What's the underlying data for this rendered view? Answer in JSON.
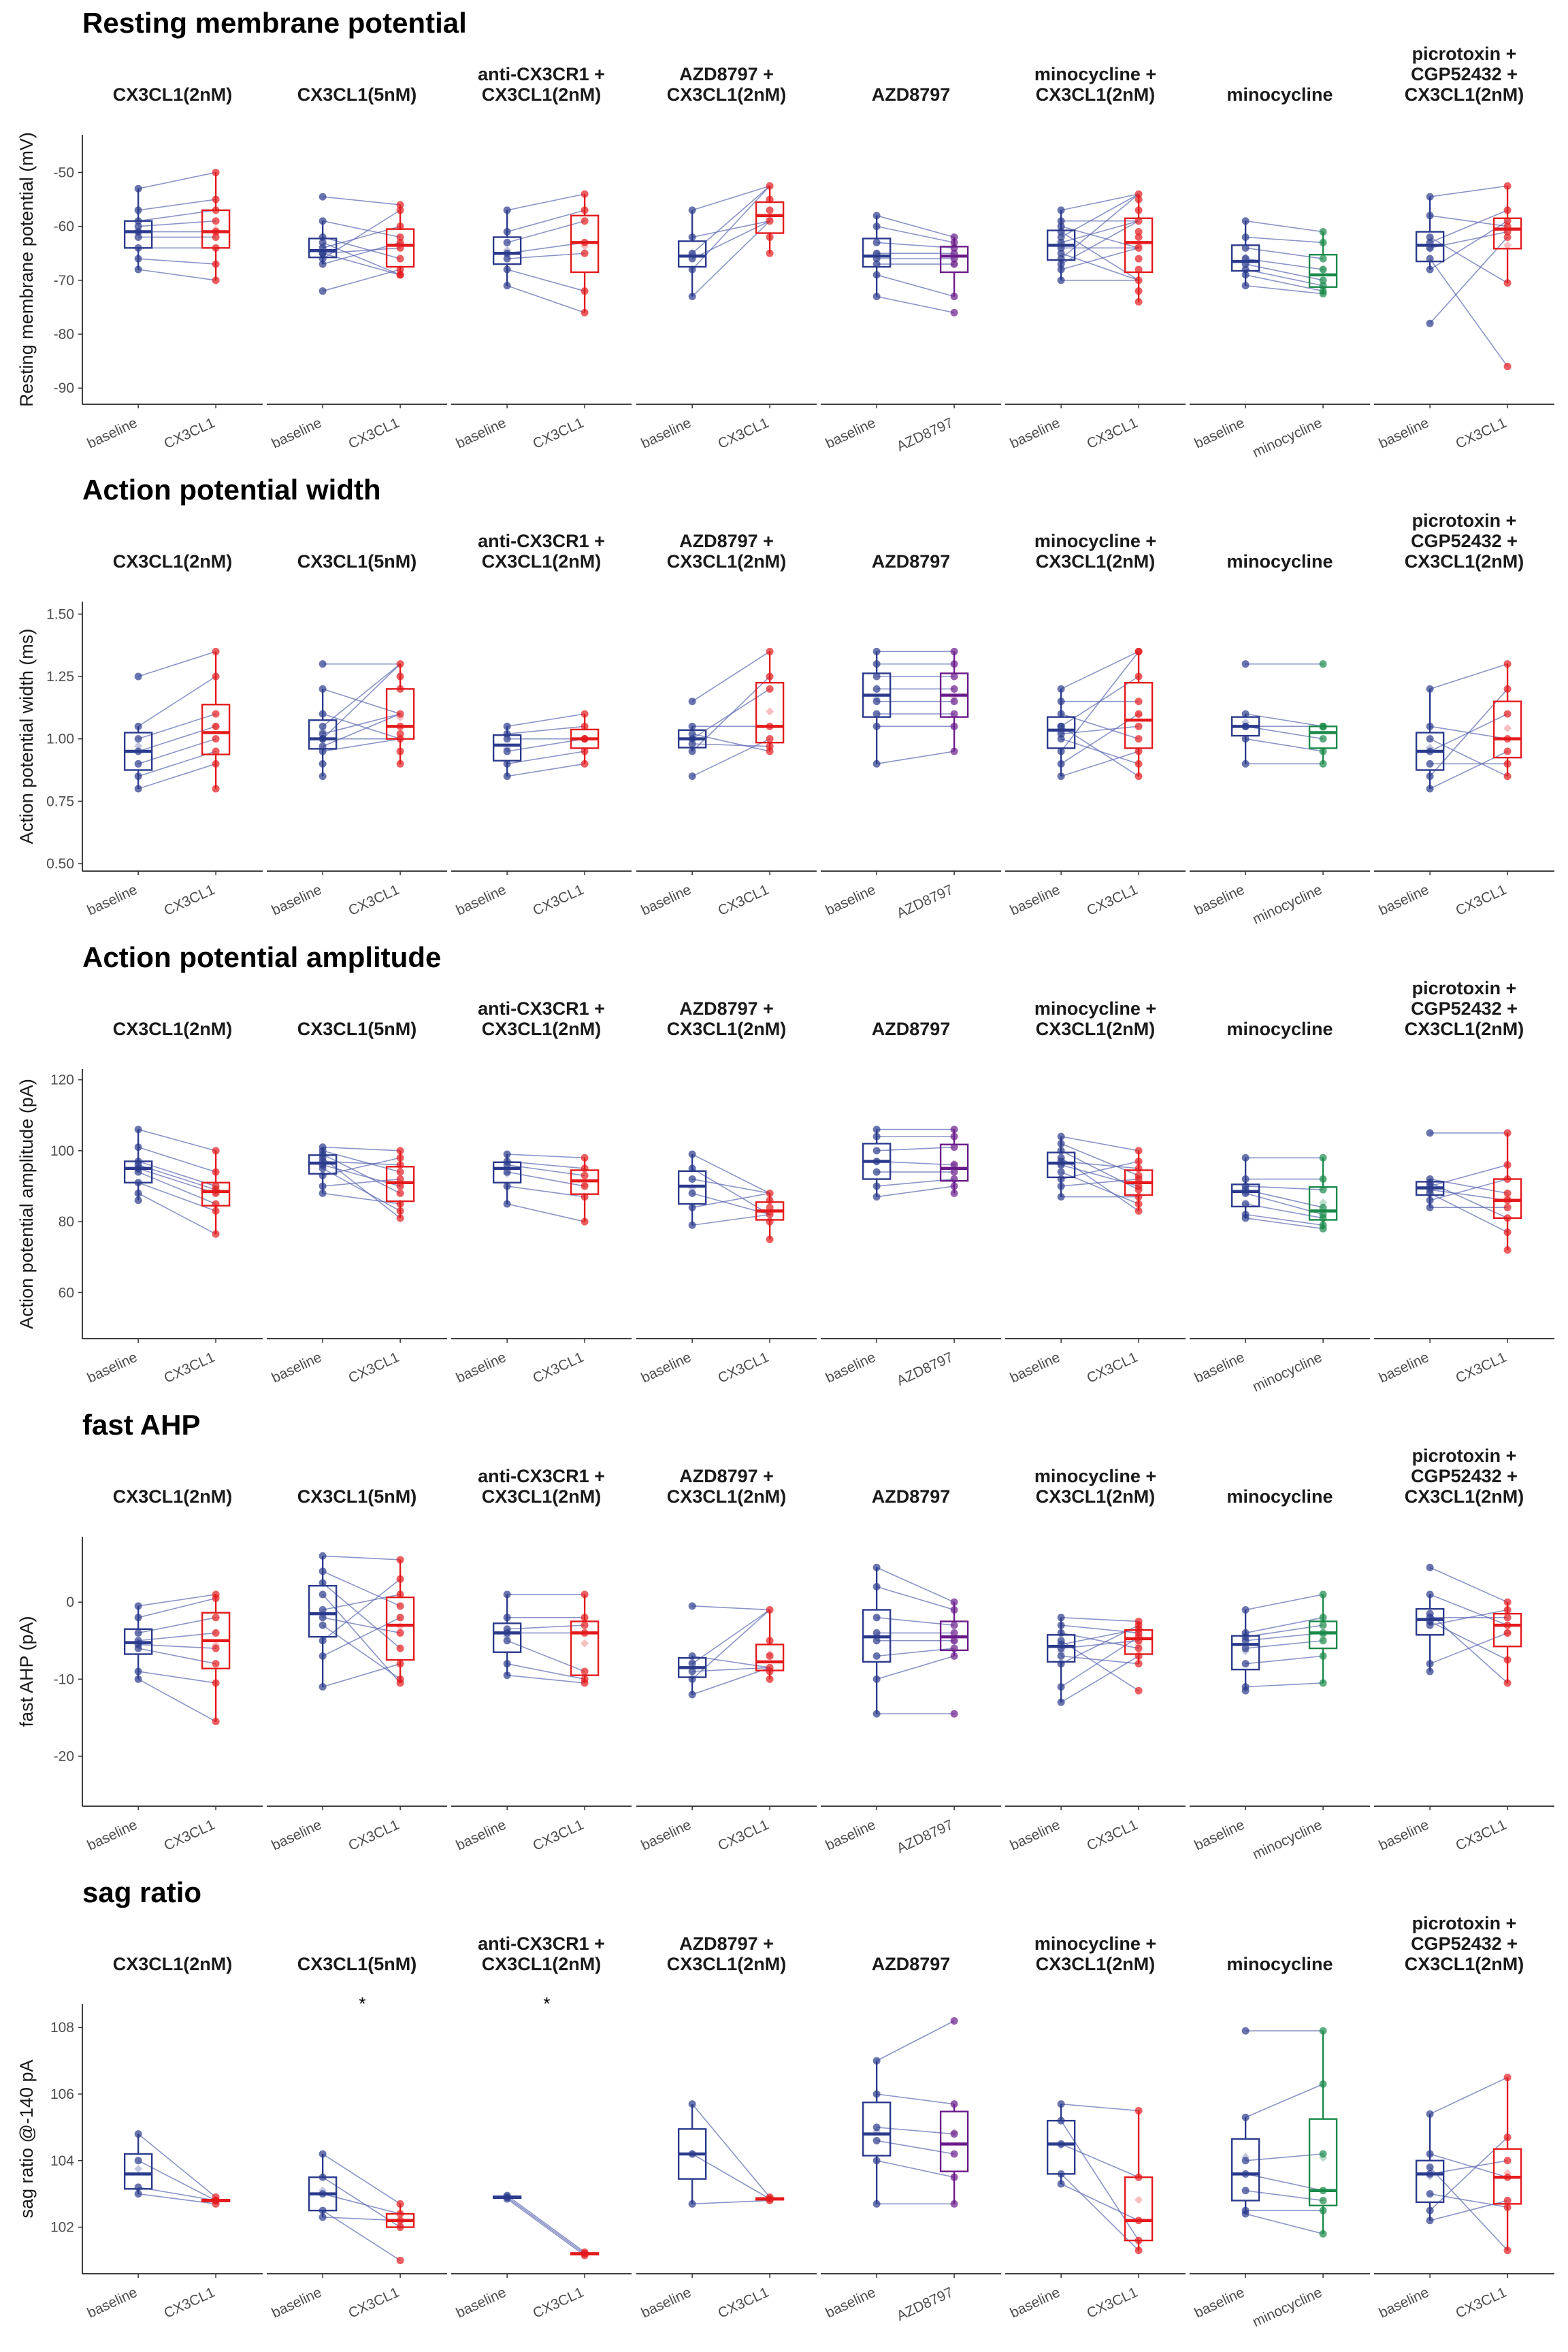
{
  "colors": {
    "baseline": "#2b3a8c",
    "CX3CL1": "#e41a1c",
    "AZD8797": "#6a1b8a",
    "minocycline": "#1a8a4a",
    "connector": "#5a67b0"
  },
  "facet_titles": [
    [
      "CX3CL1(2nM)"
    ],
    [
      "CX3CL1(5nM)"
    ],
    [
      "anti-CX3CR1 +",
      "CX3CL1(2nM)"
    ],
    [
      "AZD8797 +",
      "CX3CL1(2nM)"
    ],
    [
      "AZD8797"
    ],
    [
      "minocycline +",
      "CX3CL1(2nM)"
    ],
    [
      "minocycline"
    ],
    [
      "picrotoxin +",
      "CGP52432 +",
      "CX3CL1(2nM)"
    ]
  ],
  "x_labels": [
    [
      "baseline",
      "CX3CL1"
    ],
    [
      "baseline",
      "CX3CL1"
    ],
    [
      "baseline",
      "CX3CL1"
    ],
    [
      "baseline",
      "CX3CL1"
    ],
    [
      "baseline",
      "AZD8797"
    ],
    [
      "baseline",
      "CX3CL1"
    ],
    [
      "baseline",
      "minocycline"
    ],
    [
      "baseline",
      "CX3CL1"
    ]
  ],
  "chart_data": [
    {
      "type": "box",
      "title": "Resting membrane potential",
      "ylabel": "Resting membrane potential (mV)",
      "ylim": [
        -93,
        -43
      ],
      "yticks": [
        -90,
        -80,
        -70,
        -60,
        -50
      ],
      "facets": [
        {
          "baseline": [
            -53,
            -57,
            -59,
            -60,
            -61,
            -62,
            -64,
            -66,
            -68
          ],
          "treated": [
            -50,
            -55,
            -57,
            -59,
            -61,
            -62,
            -64,
            -67,
            -70
          ],
          "sig": ""
        },
        {
          "baseline": [
            -54.5,
            -59,
            -62,
            -63,
            -64,
            -65,
            -65,
            -66,
            -67,
            -72
          ],
          "treated": [
            -56,
            -57,
            -60,
            -62,
            -63,
            -64,
            -66,
            -68,
            -69,
            -69
          ],
          "sig": ""
        },
        {
          "baseline": [
            -57,
            -61,
            -63,
            -65,
            -66,
            -68,
            -71
          ],
          "treated": [
            -54,
            -57,
            -59,
            -63,
            -65,
            -72,
            -76
          ],
          "sig": ""
        },
        {
          "baseline": [
            -57,
            -62,
            -65,
            -66,
            -68,
            -73
          ],
          "treated": [
            -52.5,
            -55,
            -57,
            -59,
            -62,
            -65
          ],
          "sig": ""
        },
        {
          "baseline": [
            -58,
            -60,
            -63,
            -65,
            -66,
            -67,
            -69,
            -73
          ],
          "treated": [
            -62,
            -63,
            -64,
            -65,
            -66,
            -67,
            -73,
            -76
          ],
          "sig": ""
        },
        {
          "baseline": [
            -57,
            -59,
            -60,
            -61,
            -62,
            -63,
            -64,
            -65,
            -66,
            -67,
            -68,
            -70
          ],
          "treated": [
            -54,
            -55,
            -57,
            -59,
            -61,
            -62,
            -64,
            -66,
            -68,
            -70,
            -72,
            -74
          ],
          "sig": ""
        },
        {
          "baseline": [
            -59,
            -62,
            -64,
            -66,
            -67,
            -68,
            -69,
            -71
          ],
          "treated": [
            -61,
            -63,
            -66,
            -68,
            -70,
            -71,
            -72,
            -72.5
          ],
          "sig": ""
        },
        {
          "baseline": [
            -54.5,
            -58,
            -62,
            -63,
            -64,
            -66,
            -68,
            -78
          ],
          "treated": [
            -52.5,
            -57,
            -59,
            -60,
            -61,
            -62,
            -70.5,
            -86
          ],
          "sig": ""
        }
      ]
    },
    {
      "type": "box",
      "title": "Action potential width",
      "ylabel": "Action potential width (ms)",
      "ylim": [
        0.47,
        1.55
      ],
      "yticks": [
        0.5,
        0.75,
        1.0,
        1.25,
        1.5
      ],
      "ytick_labels": [
        "0.50",
        "0.75",
        "1.00",
        "1.25",
        "1.50"
      ],
      "facets": [
        {
          "baseline": [
            0.8,
            0.85,
            0.9,
            0.95,
            1.0,
            1.05,
            1.25
          ],
          "treated": [
            0.8,
            0.9,
            0.95,
            1.0,
            1.05,
            1.1,
            1.25,
            1.35
          ],
          "sig": ""
        },
        {
          "baseline": [
            0.85,
            0.9,
            0.95,
            0.97,
            1.0,
            1.0,
            1.02,
            1.05,
            1.1,
            1.2,
            1.3
          ],
          "treated": [
            0.9,
            0.95,
            1.0,
            1.02,
            1.05,
            1.1,
            1.2,
            1.25,
            1.3
          ],
          "sig": ""
        },
        {
          "baseline": [
            0.85,
            0.9,
            0.95,
            1.0,
            1.02,
            1.05
          ],
          "treated": [
            0.9,
            0.95,
            1.0,
            1.0,
            1.05,
            1.1
          ],
          "sig": ""
        },
        {
          "baseline": [
            0.85,
            0.95,
            0.98,
            1.0,
            1.02,
            1.05,
            1.15
          ],
          "treated": [
            0.95,
            0.97,
            1.0,
            1.05,
            1.2,
            1.25,
            1.35
          ],
          "sig": ""
        },
        {
          "baseline": [
            0.9,
            1.05,
            1.1,
            1.15,
            1.2,
            1.25,
            1.3,
            1.35
          ],
          "treated": [
            0.95,
            1.05,
            1.1,
            1.15,
            1.2,
            1.25,
            1.3,
            1.35
          ],
          "sig": ""
        },
        {
          "baseline": [
            0.85,
            0.9,
            0.95,
            1.0,
            1.02,
            1.05,
            1.05,
            1.1,
            1.15,
            1.2
          ],
          "treated": [
            0.85,
            0.9,
            0.95,
            1.0,
            1.05,
            1.1,
            1.15,
            1.25,
            1.35,
            1.35
          ],
          "sig": ""
        },
        {
          "baseline": [
            0.9,
            1.0,
            1.05,
            1.05,
            1.1,
            1.3
          ],
          "treated": [
            0.9,
            0.95,
            1.0,
            1.05,
            1.05,
            1.3
          ],
          "sig": ""
        },
        {
          "baseline": [
            0.8,
            0.85,
            0.9,
            0.95,
            1.0,
            1.05,
            1.2
          ],
          "treated": [
            0.85,
            0.9,
            0.95,
            1.0,
            1.1,
            1.2,
            1.3
          ],
          "sig": ""
        }
      ]
    },
    {
      "type": "box",
      "title": "Action potential amplitude",
      "ylabel": "Action potential amplitude (pA)",
      "ylim": [
        47,
        123
      ],
      "yticks": [
        60,
        80,
        100,
        120
      ],
      "facets": [
        {
          "baseline": [
            86,
            88,
            91,
            94,
            95,
            96,
            97,
            101,
            106
          ],
          "treated": [
            76.5,
            83,
            85,
            88,
            89,
            90,
            94,
            100
          ],
          "sig": ""
        },
        {
          "baseline": [
            88,
            90,
            93,
            95,
            96,
            97,
            98,
            99,
            100,
            101
          ],
          "treated": [
            81,
            83,
            85,
            88,
            90,
            92,
            94,
            96,
            98,
            100
          ],
          "sig": ""
        },
        {
          "baseline": [
            85,
            90,
            94,
            96,
            97,
            99
          ],
          "treated": [
            80,
            87,
            90,
            93,
            95,
            98
          ],
          "sig": ""
        },
        {
          "baseline": [
            79,
            84,
            88,
            92,
            95,
            99
          ],
          "treated": [
            75,
            80,
            82,
            84,
            86,
            88
          ],
          "sig": ""
        },
        {
          "baseline": [
            87,
            90,
            94,
            97,
            100,
            104,
            106
          ],
          "treated": [
            88,
            90,
            92,
            94,
            96,
            101,
            104,
            106
          ],
          "sig": ""
        },
        {
          "baseline": [
            87,
            90,
            92,
            94,
            96,
            97,
            98,
            100,
            102,
            104
          ],
          "treated": [
            83,
            85,
            87,
            89,
            90,
            92,
            93,
            95,
            97,
            100
          ],
          "sig": ""
        },
        {
          "baseline": [
            81,
            82,
            85,
            88,
            89,
            90,
            92,
            98
          ],
          "treated": [
            78,
            79,
            81,
            82,
            84,
            89,
            92,
            98
          ],
          "sig": ""
        },
        {
          "baseline": [
            84,
            86,
            88,
            89,
            90,
            91,
            92,
            105
          ],
          "treated": [
            72,
            77,
            81,
            84,
            86,
            88,
            92,
            96,
            105
          ],
          "sig": ""
        }
      ]
    },
    {
      "type": "box",
      "title": "fast AHP",
      "ylabel": "fast AHP (pA)",
      "ylim": [
        -26.5,
        8.5
      ],
      "yticks": [
        -20,
        -10,
        0
      ],
      "facets": [
        {
          "baseline": [
            -0.5,
            -2,
            -4,
            -5,
            -5.5,
            -6,
            -9,
            -10
          ],
          "treated": [
            1,
            0.5,
            -2,
            -4,
            -6,
            -8,
            -10.5,
            -15.5
          ],
          "sig": ""
        },
        {
          "baseline": [
            6,
            4,
            2.5,
            1,
            -1,
            -2,
            -3,
            -5,
            -7,
            -11
          ],
          "treated": [
            5.5,
            3,
            1,
            -0.5,
            -2,
            -4,
            -6,
            -8,
            -10,
            -10.5
          ],
          "sig": ""
        },
        {
          "baseline": [
            1,
            -2,
            -3.5,
            -4,
            -5,
            -8,
            -9.5
          ],
          "treated": [
            1,
            -2,
            -3,
            -4,
            -9,
            -10,
            -10.5
          ],
          "sig": ""
        },
        {
          "baseline": [
            -0.5,
            -7,
            -8,
            -9,
            -10,
            -12
          ],
          "treated": [
            -1,
            -5,
            -7,
            -8.5,
            -9,
            -10
          ],
          "sig": ""
        },
        {
          "baseline": [
            4.5,
            2,
            -2,
            -4,
            -5,
            -7,
            -10,
            -14.5
          ],
          "treated": [
            0,
            -1,
            -3,
            -4,
            -5,
            -6,
            -7,
            -14.5
          ],
          "sig": ""
        },
        {
          "baseline": [
            -2,
            -3,
            -4,
            -5,
            -5.5,
            -6,
            -7,
            -8,
            -11,
            -13
          ],
          "treated": [
            -2.5,
            -3,
            -3.5,
            -4,
            -4.5,
            -5,
            -6,
            -7,
            -8,
            -11.5
          ],
          "sig": ""
        },
        {
          "baseline": [
            -1,
            -4,
            -4.5,
            -5,
            -6,
            -8,
            -11,
            -11.5
          ],
          "treated": [
            1,
            -2,
            -3,
            -4,
            -5,
            -7,
            -10.5
          ],
          "sig": ""
        },
        {
          "baseline": [
            4.5,
            1,
            -1.5,
            -2,
            -2.5,
            -3,
            -8,
            -9
          ],
          "treated": [
            0,
            -1,
            -2,
            -3,
            -4,
            -7.5,
            -10.5
          ],
          "sig": ""
        }
      ]
    },
    {
      "type": "box",
      "title": "sag ratio",
      "ylabel": "sag ratio @-140 pA",
      "ylim": [
        100.6,
        108.7
      ],
      "yticks": [
        102,
        104,
        106,
        108
      ],
      "facets": [
        {
          "baseline": [
            104.8,
            104,
            103.2,
            103
          ],
          "treated": [
            102.9,
            102.8,
            102.8,
            102.7
          ],
          "sig": ""
        },
        {
          "baseline": [
            104.2,
            103.5,
            103,
            102.5,
            102.3
          ],
          "treated": [
            102.7,
            102.4,
            102.2,
            102.0,
            101.0
          ],
          "sig": "*"
        },
        {
          "baseline": [
            102.95,
            102.9,
            102.85
          ],
          "treated": [
            101.25,
            101.2,
            101.15
          ],
          "sig": "*"
        },
        {
          "baseline": [
            105.7,
            104.2,
            102.7
          ],
          "treated": [
            102.9,
            102.85,
            102.8
          ],
          "sig": ""
        },
        {
          "baseline": [
            107,
            106,
            105,
            104.6,
            104,
            102.7
          ],
          "treated": [
            108.2,
            105.7,
            104.8,
            104.2,
            103.5,
            102.7
          ],
          "sig": ""
        },
        {
          "baseline": [
            105.7,
            105.2,
            104.5,
            103.6,
            103.3
          ],
          "treated": [
            105.5,
            103.5,
            102.2,
            101.6,
            101.3
          ],
          "sig": ""
        },
        {
          "baseline": [
            107.9,
            105.3,
            104,
            103.6,
            103.1,
            102.5,
            102.4
          ],
          "treated": [
            107.9,
            106.3,
            104.2,
            103.1,
            102.8,
            102.5,
            101.8
          ],
          "sig": ""
        },
        {
          "baseline": [
            105.4,
            104.2,
            103.8,
            103.6,
            103,
            102.5,
            102.2
          ],
          "treated": [
            106.5,
            104.7,
            104,
            103.5,
            102.8,
            102.6,
            101.3
          ],
          "sig": ""
        }
      ]
    }
  ]
}
